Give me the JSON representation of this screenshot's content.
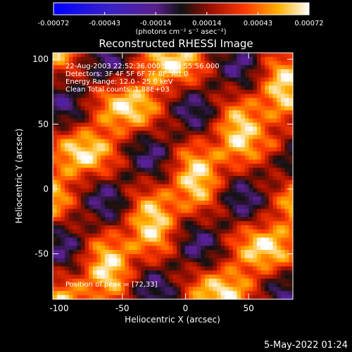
{
  "chart_data": {
    "type": "heatmap",
    "title": "Reconstructed RHESSI Image",
    "xlabel": "Heliocentric X (arcsec)",
    "ylabel": "Heliocentric Y (arcsec)",
    "xlim": [
      -105,
      85
    ],
    "ylim": [
      -85,
      105
    ],
    "x_ticks": [
      -100,
      -50,
      0,
      50
    ],
    "y_ticks": [
      100,
      50,
      0,
      -50
    ],
    "colorbar": {
      "ticks": [
        "-0.00072",
        "-0.00043",
        "-0.00014",
        "0.00014",
        "0.00043",
        "0.00072"
      ],
      "range": [
        -0.00072,
        0.00072
      ],
      "unit_label": "(photons cm⁻² s⁻¹ asec⁻²)",
      "colormap": "blue-purple-red-yellow-white"
    },
    "annotations": [
      "22-Aug-2003 22:52:36.000 to 22:55:56.000",
      "Detectors: 3F 4F 5F 6F 7F 8F, Att 0",
      "Energy Range: 12.0 - 25.0 keV",
      "Clean    Total counts: 1.88E+03",
      "Position of peak = [72,33]"
    ],
    "peak_position": [
      72,
      33
    ],
    "grid": false
  },
  "footer": {
    "date": "5-May-2022 01:24"
  }
}
